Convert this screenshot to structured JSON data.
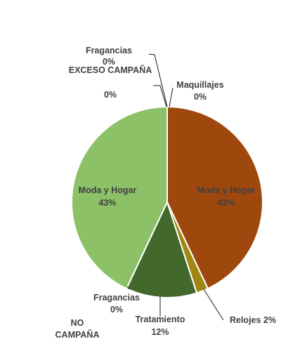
{
  "chart_data": {
    "type": "pie",
    "start_angle_deg": 0,
    "direction": "clockwise",
    "slices": [
      {
        "name": "Maquillajes",
        "value": 0,
        "label": "Maquillajes",
        "pct_label": "0%",
        "color": "#8B8B00"
      },
      {
        "name": "Moda y Hogar",
        "value": 43,
        "label": "Moda y Hogar",
        "pct_label": "43%",
        "color": "#9E480E"
      },
      {
        "name": "Relojes",
        "value": 2,
        "label": "Relojes 2%",
        "pct_label": "",
        "color": "#A08612"
      },
      {
        "name": "Tratamiento",
        "value": 12,
        "label": "Tratamiento",
        "pct_label": "12%",
        "color": "#43682B"
      },
      {
        "name": "Fragancias",
        "value": 0,
        "label": "Fragancias",
        "pct_label": "0%",
        "color": "#5B8F3C"
      },
      {
        "name": "Moda y Hogar",
        "value": 43,
        "label": "Moda y Hogar",
        "pct_label": "43%",
        "color": "#8CC168"
      },
      {
        "name": "EXCESO CAMPAÑA",
        "value": 0,
        "label": "EXCESO CAMPAÑA",
        "pct_label": "0%",
        "color": "#6E9E4A"
      },
      {
        "name": "Fragancias",
        "value": 0,
        "label": "Fragancias",
        "pct_label": "0%",
        "color": "#6E9E4A"
      }
    ],
    "group_labels": {
      "no_campana": "NO CAMPAÑA"
    }
  }
}
